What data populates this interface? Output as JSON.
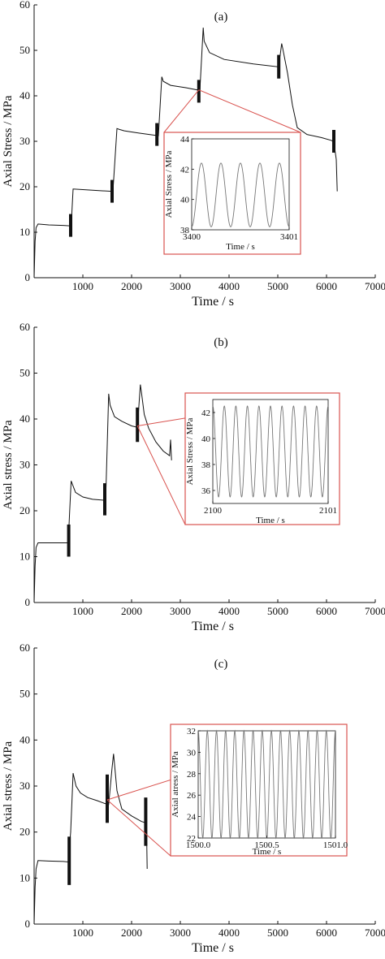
{
  "chart_data": [
    {
      "type": "line",
      "panel_label": "(a)",
      "xlabel": "Time / s",
      "ylabel": "Axial Stress / MPa",
      "xlim": [
        0,
        7000
      ],
      "ylim": [
        0,
        60
      ],
      "xticks": [
        1000,
        2000,
        3000,
        4000,
        5000,
        6000,
        7000
      ],
      "yticks": [
        0,
        10,
        20,
        30,
        40,
        50,
        60
      ],
      "series": [
        {
          "x": [
            0,
            20,
            40,
            80,
            300,
            600,
            760,
            800,
            1100,
            1400,
            1600,
            1620,
            1700,
            1750,
            1850,
            2150,
            2500,
            2550,
            2620,
            2650,
            2800,
            3100,
            3350,
            3400,
            3470,
            3490,
            3600,
            3900,
            4500,
            5000,
            5050,
            5080,
            5100,
            5200,
            5300,
            5400,
            5600,
            5900,
            6100,
            6150,
            6200,
            6220
          ],
          "y": [
            0,
            8,
            11,
            11.8,
            11.6,
            11.5,
            11.4,
            19.5,
            19.3,
            19.1,
            19,
            19.5,
            32.8,
            32.6,
            32.3,
            31.8,
            31.3,
            31.2,
            44.2,
            43.2,
            42.3,
            41.8,
            41.3,
            41,
            55,
            52,
            49.5,
            48,
            47,
            46.4,
            49,
            51.5,
            50.5,
            45,
            38,
            33,
            31.5,
            30.8,
            30.2,
            29.8,
            26,
            19
          ]
        }
      ],
      "oscillation_bands": [
        {
          "x": 750,
          "ymin": 9,
          "ymax": 14
        },
        {
          "x": 1600,
          "ymin": 16.5,
          "ymax": 21.5
        },
        {
          "x": 2520,
          "ymin": 29,
          "ymax": 34
        },
        {
          "x": 3380,
          "ymin": 38.5,
          "ymax": 43.5
        },
        {
          "x": 5020,
          "ymin": 43.8,
          "ymax": 49
        },
        {
          "x": 6150,
          "ymin": 27.5,
          "ymax": 32.5
        }
      ],
      "zoom_source": {
        "x": 3380,
        "y": 41.3
      },
      "inset": {
        "xlabel": "Time / s",
        "ylabel": "Axial Stress / MPa",
        "xlim": [
          3400,
          3401
        ],
        "ylim": [
          38,
          44
        ],
        "xticks": [
          3400,
          3401
        ],
        "yticks": [
          38,
          40,
          42,
          44
        ],
        "wave": {
          "cycles": 5,
          "mean": 40.3,
          "amplitude": 2.1,
          "phase": 0.75
        }
      }
    },
    {
      "type": "line",
      "panel_label": "(b)",
      "xlabel": "Time / s",
      "ylabel": "Axial stress / MPa",
      "xlim": [
        0,
        7000
      ],
      "ylim": [
        0,
        60
      ],
      "xticks": [
        1000,
        2000,
        3000,
        4000,
        5000,
        6000,
        7000
      ],
      "yticks": [
        0,
        10,
        20,
        30,
        40,
        50,
        60
      ],
      "series": [
        {
          "x": [
            0,
            20,
            40,
            80,
            300,
            600,
            700,
            730,
            760,
            850,
            1000,
            1200,
            1430,
            1470,
            1530,
            1560,
            1650,
            1800,
            2000,
            2120,
            2180,
            2200,
            2260,
            2350,
            2500,
            2650,
            2780,
            2800,
            2820
          ],
          "y": [
            0,
            8,
            12,
            13,
            13,
            13,
            13,
            20,
            26.5,
            24,
            23,
            22.5,
            22.3,
            23,
            45.5,
            43,
            40.5,
            39.5,
            38.5,
            38.2,
            47.5,
            46,
            41,
            38,
            35,
            33,
            32,
            35.5,
            31
          ]
        }
      ],
      "oscillation_bands": [
        {
          "x": 710,
          "ymin": 10,
          "ymax": 17
        },
        {
          "x": 1450,
          "ymin": 19,
          "ymax": 26
        },
        {
          "x": 2120,
          "ymin": 35,
          "ymax": 42.5
        }
      ],
      "zoom_source": {
        "x": 2120,
        "y": 38.5
      },
      "inset": {
        "xlabel": "Time / s",
        "ylabel": "Axial Stress / MPa",
        "xlim": [
          2100,
          2101
        ],
        "ylim": [
          35,
          43
        ],
        "xticks": [
          2100,
          2101
        ],
        "yticks": [
          36,
          38,
          40,
          42
        ],
        "wave": {
          "cycles": 10,
          "mean": 39,
          "amplitude": 3.5,
          "phase": 0.25
        }
      }
    },
    {
      "type": "line",
      "panel_label": "(c)",
      "xlabel": "Time / s",
      "ylabel": "Axial stress / MPa",
      "xlim": [
        0,
        7000
      ],
      "ylim": [
        0,
        60
      ],
      "xticks": [
        1000,
        2000,
        3000,
        4000,
        5000,
        6000,
        7000
      ],
      "yticks": [
        0,
        10,
        20,
        30,
        40,
        50,
        60
      ],
      "series": [
        {
          "x": [
            0,
            20,
            40,
            80,
            300,
            600,
            700,
            750,
            800,
            860,
            950,
            1100,
            1300,
            1450,
            1530,
            1600,
            1630,
            1700,
            1800,
            2000,
            2200,
            2290,
            2300,
            2320
          ],
          "y": [
            0,
            8,
            12,
            13.8,
            13.7,
            13.6,
            13.5,
            20,
            32.8,
            30,
            28.5,
            27.5,
            26.8,
            26.2,
            26,
            34,
            37,
            29,
            25,
            23.5,
            22.3,
            22,
            25,
            12
          ]
        }
      ],
      "oscillation_bands": [
        {
          "x": 720,
          "ymin": 8.5,
          "ymax": 19
        },
        {
          "x": 1500,
          "ymin": 22,
          "ymax": 32.5
        },
        {
          "x": 2290,
          "ymin": 17,
          "ymax": 27.5
        }
      ],
      "zoom_source": {
        "x": 1500,
        "y": 27
      },
      "inset": {
        "xlabel": "Time / s",
        "ylabel": "Axial atress / MPa",
        "xlim": [
          1500.0,
          1501.0
        ],
        "ylim": [
          22,
          32
        ],
        "xticks": [
          1500.0,
          1500.5,
          1501.0
        ],
        "tick_labels": [
          "1500.0",
          "1500.5",
          "1501.0"
        ],
        "yticks": [
          22,
          24,
          26,
          28,
          30,
          32
        ],
        "wave": {
          "cycles": 15,
          "mean": 27,
          "amplitude": 5,
          "phase": 0.25
        }
      }
    }
  ],
  "colors": {
    "axis": "#111111",
    "line": "#111111",
    "inset_line": "#777777",
    "zoom": "#d9534f"
  }
}
